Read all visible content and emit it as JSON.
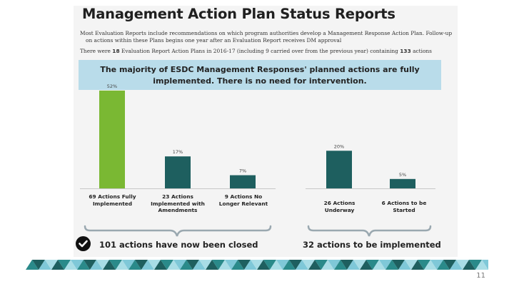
{
  "title": "Management Action Plan Status Reports",
  "intro": {
    "line1": "Most Evaluation Reports include recommendations on which program authorities develop a Management Response Action Plan. Follow-up",
    "line2": "on actions within these Plans begins one year after an Evaluation Report receives DM approval",
    "line3_prefix": "There were",
    "count_plans": "18",
    "line3_mid": "Evaluation Report Action Plans in 2016-17 (including 9 carried over from the previous year) containing",
    "count_actions": "133",
    "line3_suffix": "actions"
  },
  "banner": {
    "line1": "The majority of ESDC Management Responses' planned actions are fully",
    "line2": "implemented. There is no need for intervention."
  },
  "closed_summary": "101 actions have now been closed",
  "open_summary": "32 actions to be implemented",
  "page_number": "11",
  "colors": {
    "fully_implemented": "#7ab833",
    "other": "#1e5f5f",
    "banner": "#b9dcea",
    "brace": "#9aa8b0"
  },
  "icons": {
    "check": "check-circle-icon"
  },
  "chart_data": [
    {
      "type": "bar",
      "title": "",
      "categories": [
        [
          "69 Actions Fully",
          "Implemented"
        ],
        [
          "23 Actions",
          "Implemented with",
          "Amendments"
        ],
        [
          "9 Actions No",
          "Longer Relevant"
        ]
      ],
      "values": [
        52,
        17,
        7
      ],
      "data_labels": [
        "52%",
        "17%",
        "7%"
      ],
      "colors": [
        "#7ab833",
        "#1e5f5f",
        "#1e5f5f"
      ],
      "ylim": [
        0,
        55
      ],
      "xlabel": "",
      "ylabel": "",
      "grid": false
    },
    {
      "type": "bar",
      "title": "",
      "categories": [
        [
          "26 Actions",
          "Underway"
        ],
        [
          "6 Actions to be",
          "Started"
        ]
      ],
      "values": [
        20,
        5
      ],
      "data_labels": [
        "20%",
        "5%"
      ],
      "colors": [
        "#1e5f5f",
        "#1e5f5f"
      ],
      "ylim": [
        0,
        55
      ],
      "xlabel": "",
      "ylabel": "",
      "grid": false
    }
  ]
}
